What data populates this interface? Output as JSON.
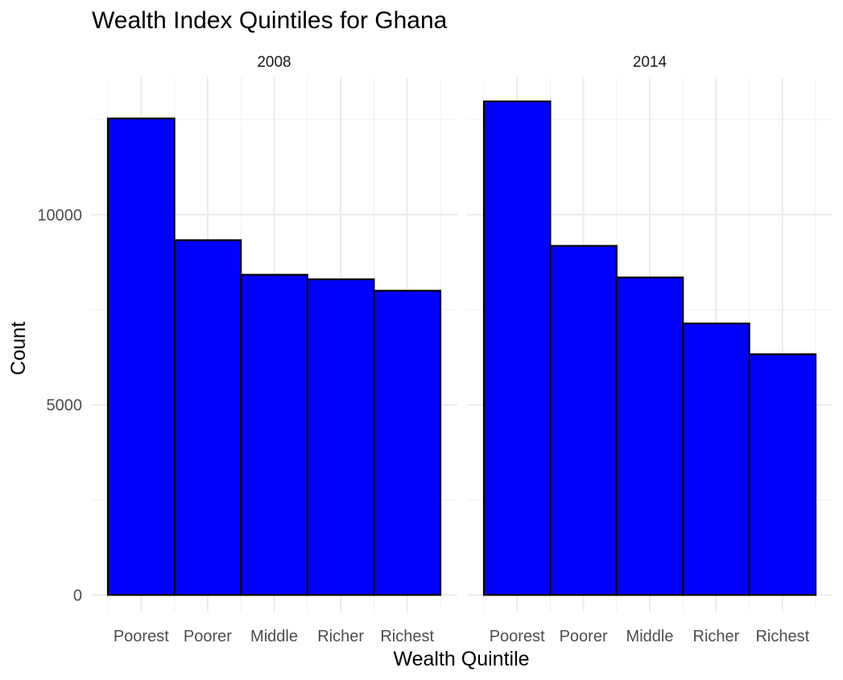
{
  "chart_data": {
    "type": "bar",
    "title": "Wealth Index Quintiles for Ghana",
    "xlabel": "Wealth Quintile",
    "ylabel": "Count",
    "categories": [
      "Poorest",
      "Poorer",
      "Middle",
      "Richer",
      "Richest"
    ],
    "panels": [
      {
        "label": "2008",
        "values": [
          12530,
          9330,
          8420,
          8300,
          8000
        ]
      },
      {
        "label": "2014",
        "values": [
          12980,
          9180,
          8350,
          7140,
          6330
        ]
      }
    ],
    "y_ticks": [
      0,
      5000,
      10000
    ],
    "y_tick_labels": [
      "0",
      "5000",
      "10000"
    ],
    "ylim": [
      0,
      12980
    ],
    "bar_fill": "#0000ff",
    "bar_outline": "#000000",
    "grid": true,
    "legend": "none"
  }
}
